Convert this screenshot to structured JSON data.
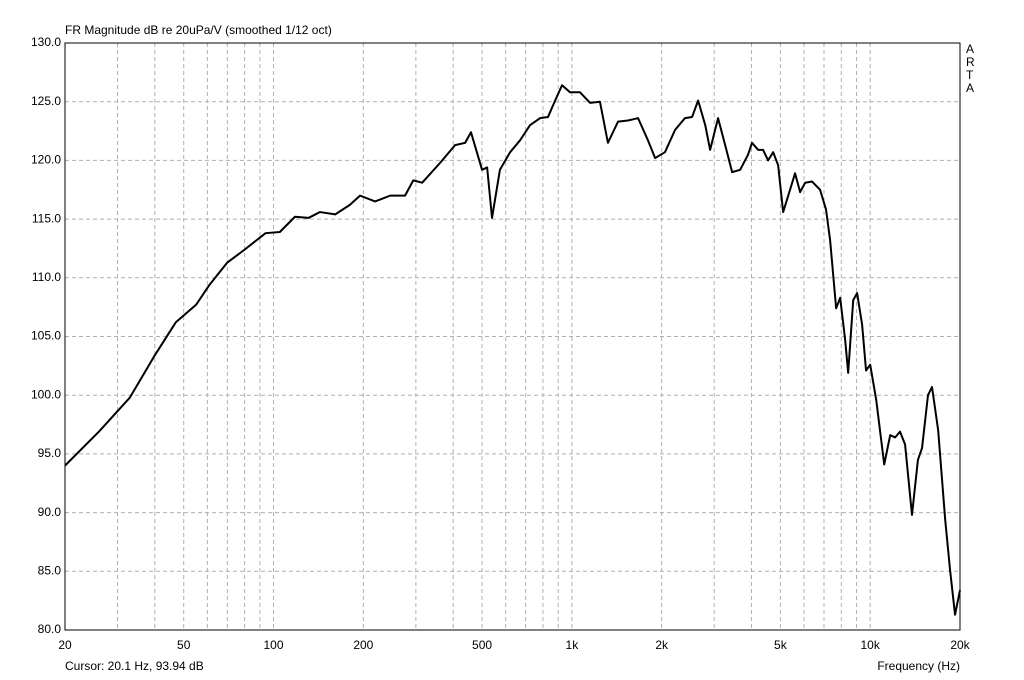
{
  "chart_data": {
    "type": "line",
    "title": "FR Magnitude dB re 20uPa/V (smoothed 1/12 oct)",
    "x_label": "Frequency (Hz)",
    "cursor_text": "Cursor: 20.1 Hz, 93.94 dB",
    "watermark": "ARTA",
    "xscale": "log",
    "grid": true,
    "color": "#000000",
    "xlim": [
      20,
      20000
    ],
    "ylim": [
      80,
      130
    ],
    "xticks": [
      20,
      50,
      100,
      200,
      500,
      {
        "value": 1000,
        "label": "1k"
      },
      {
        "value": 2000,
        "label": "2k"
      },
      {
        "value": 5000,
        "label": "5k"
      },
      {
        "value": 10000,
        "label": "10k"
      },
      {
        "value": 20000,
        "label": "20k"
      }
    ],
    "xminor": [
      30,
      40,
      60,
      70,
      80,
      90,
      300,
      400,
      600,
      700,
      800,
      900,
      3000,
      4000,
      6000,
      7000,
      8000,
      9000
    ],
    "yticks": [
      {
        "value": 80,
        "label": "80.0"
      },
      {
        "value": 85,
        "label": "85.0"
      },
      {
        "value": 90,
        "label": "90.0"
      },
      {
        "value": 95,
        "label": "95.0"
      },
      {
        "value": 100,
        "label": "100.0"
      },
      {
        "value": 105,
        "label": "105.0"
      },
      {
        "value": 110,
        "label": "110.0"
      },
      {
        "value": 115,
        "label": "115.0"
      },
      {
        "value": 120,
        "label": "120.0"
      },
      {
        "value": 125,
        "label": "125.0"
      },
      {
        "value": 130,
        "label": "130.0"
      }
    ],
    "x": [
      20,
      26,
      33,
      40,
      47,
      55,
      61,
      70,
      80,
      94,
      105,
      118,
      131,
      143,
      161,
      180,
      195,
      219,
      246,
      276,
      294,
      315,
      362,
      406,
      439,
      459,
      500,
      520,
      540,
      574,
      621,
      670,
      724,
      782,
      832,
      879,
      927,
      986,
      1065,
      1151,
      1242,
      1321,
      1428,
      1542,
      1667,
      1800,
      1901,
      2052,
      2218,
      2394,
      2530,
      2650,
      2800,
      2907,
      3091,
      3265,
      3445,
      3665,
      3897,
      4017,
      4210,
      4374,
      4548,
      4730,
      4913,
      5108,
      5387,
      5600,
      5823,
      6054,
      6385,
      6792,
      7113,
      7339,
      7690,
      7931,
      8244,
      8437,
      8773,
      9040,
      9396,
      9685,
      10000,
      10476,
      11143,
      11671,
      12114,
      12588,
      13090,
      13806,
      14457,
      14920,
      15623,
      16115,
      16900,
      17838,
      18525,
      19250,
      20000
    ],
    "values": [
      94.0,
      96.9,
      99.8,
      103.4,
      106.2,
      107.7,
      109.4,
      111.3,
      112.4,
      113.8,
      113.9,
      115.2,
      115.1,
      115.6,
      115.4,
      116.2,
      117.0,
      116.5,
      117.0,
      117.0,
      118.3,
      118.1,
      119.8,
      121.3,
      121.5,
      122.4,
      119.2,
      119.4,
      115.1,
      119.2,
      120.7,
      121.7,
      123.0,
      123.6,
      123.7,
      125.1,
      126.4,
      125.8,
      125.8,
      124.9,
      125.0,
      121.5,
      123.3,
      123.4,
      123.6,
      121.7,
      120.2,
      120.7,
      122.6,
      123.6,
      123.7,
      125.1,
      123.0,
      120.9,
      123.6,
      121.3,
      119.0,
      119.2,
      120.5,
      121.5,
      120.9,
      120.9,
      120.0,
      120.7,
      119.6,
      115.6,
      117.5,
      118.9,
      117.3,
      118.1,
      118.2,
      117.5,
      115.8,
      113.2,
      107.4,
      108.3,
      104.7,
      101.9,
      108.1,
      108.7,
      106.0,
      102.1,
      102.6,
      99.6,
      94.1,
      96.6,
      96.4,
      96.9,
      95.8,
      89.8,
      94.5,
      95.5,
      100.0,
      100.7,
      97.0,
      89.4,
      85.1,
      81.3,
      83.4
    ]
  }
}
